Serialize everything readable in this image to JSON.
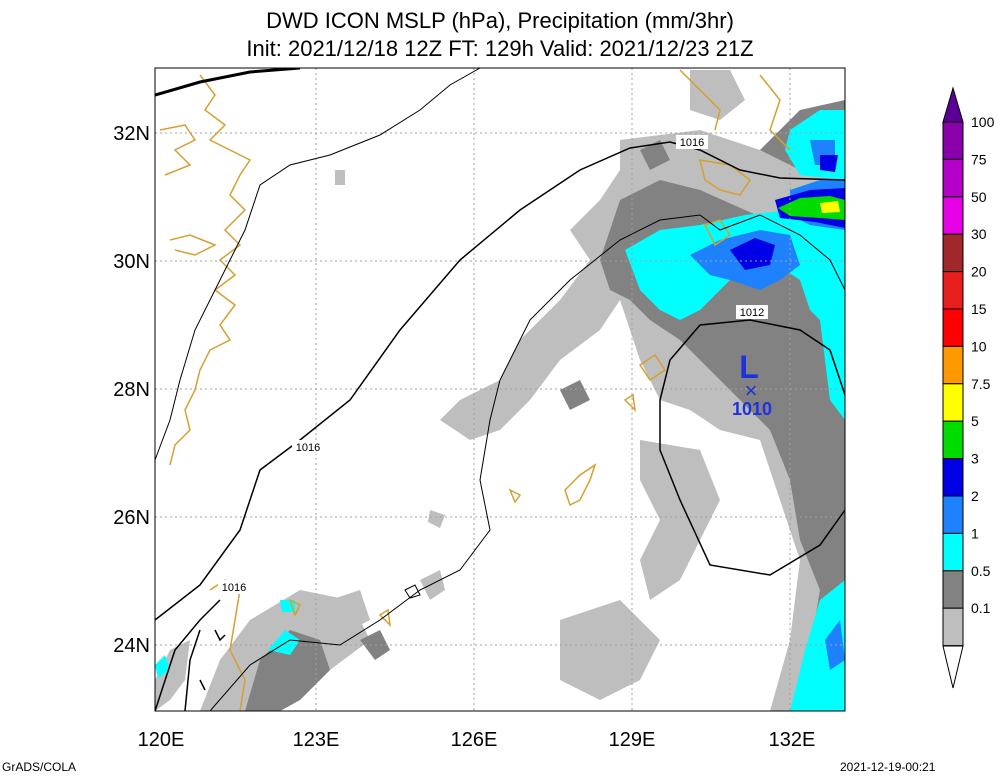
{
  "title": {
    "line1": "DWD ICON MSLP (hPa), Precipitation (mm/3hr)",
    "line2": "Init: 2021/12/18 12Z  FT: 129h  Valid: 2021/12/23 21Z"
  },
  "axes": {
    "lat_labels": [
      "32N",
      "30N",
      "28N",
      "26N",
      "24N"
    ],
    "lon_labels": [
      "120E",
      "123E",
      "126E",
      "129E",
      "132E"
    ]
  },
  "isobar_labels": [
    "1016",
    "1016",
    "1016",
    "1012"
  ],
  "low": {
    "symbol": "L",
    "marker": "×",
    "pressure": "1010"
  },
  "colorbar": {
    "levels": [
      "100",
      "75",
      "50",
      "30",
      "20",
      "15",
      "10",
      "7.5",
      "5",
      "3",
      "2",
      "1",
      "0.5",
      "0.1"
    ],
    "colors": [
      "#8a00aa",
      "#b400c8",
      "#e600e6",
      "#a0282a",
      "#e61e1e",
      "#ff0000",
      "#ff9900",
      "#ffff00",
      "#00dc00",
      "#0000e6",
      "#1e82ff",
      "#00ffff",
      "#828282",
      "#bebebe"
    ],
    "top_color": "#5a0096"
  },
  "footer": {
    "left": "GrADS/COLA",
    "right": "2021-12-19-00:21"
  }
}
